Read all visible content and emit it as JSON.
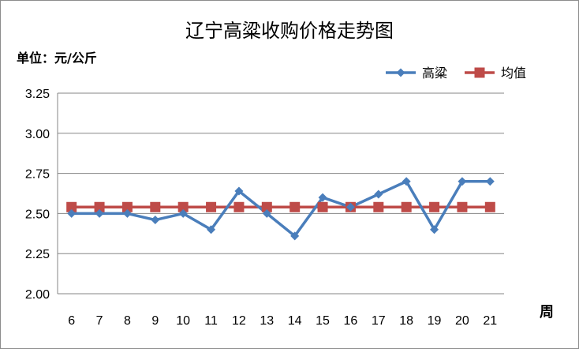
{
  "chart_data": {
    "type": "line",
    "title": "辽宁高粱收购价格走势图",
    "unit_label": "单位：元/公斤",
    "xlabel": "周",
    "ylabel": "",
    "categories": [
      "6",
      "7",
      "8",
      "9",
      "10",
      "11",
      "12",
      "13",
      "14",
      "15",
      "16",
      "17",
      "18",
      "19",
      "20",
      "21"
    ],
    "ylim": [
      2.0,
      3.25
    ],
    "yticks": [
      "2.00",
      "2.25",
      "2.50",
      "2.75",
      "3.00",
      "3.25"
    ],
    "grid": true,
    "legend_position": "top-right",
    "series": [
      {
        "name": "高粱",
        "color": "#4a7ebb",
        "marker": "diamond",
        "values": [
          2.5,
          2.5,
          2.5,
          2.46,
          2.5,
          2.4,
          2.64,
          2.5,
          2.36,
          2.6,
          2.54,
          2.62,
          2.7,
          2.4,
          2.7,
          2.7
        ]
      },
      {
        "name": "均值",
        "color": "#be4b48",
        "marker": "square",
        "values": [
          2.54,
          2.54,
          2.54,
          2.54,
          2.54,
          2.54,
          2.54,
          2.54,
          2.54,
          2.54,
          2.54,
          2.54,
          2.54,
          2.54,
          2.54,
          2.54
        ]
      }
    ]
  }
}
